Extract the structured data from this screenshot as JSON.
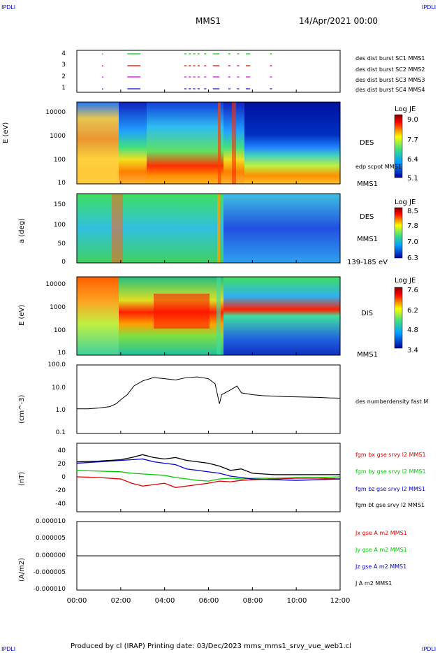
{
  "corner_labels": {
    "tl": "IPDLI",
    "tr": "IPDLI",
    "bl": "IPDLI",
    "br": "IPDLI"
  },
  "header": {
    "spacecraft": "MMS1",
    "date": "14/Apr/2021 00:00"
  },
  "footer": "Produced by cl (IRAP)   Printing date: 03/Dec/2023   mms_mms1_srvy_vue_web1.cl",
  "colors": {
    "red": "#dd0000",
    "magenta": "#dd00dd",
    "blue": "#0000cc",
    "green": "#00cc00",
    "black": "#000000"
  },
  "chart_data": [
    {
      "type": "scatter",
      "name": "burst indicators",
      "y_ticks": [
        "4",
        "3",
        "2",
        "1"
      ],
      "legend": [
        {
          "text": "des dist burst SC1 MMS1",
          "color": "#0000cc"
        },
        {
          "text": "des dist burst SC2 MMS2",
          "color": "#dd00dd"
        },
        {
          "text": "des dist burst SC3 MMS3",
          "color": "#dd0000"
        },
        {
          "text": "des dist burst SC4 MMS4",
          "color": "#00cc00"
        }
      ]
    },
    {
      "type": "heatmap",
      "ylabel": "E (eV)",
      "y_ticks": [
        "10000",
        "1000",
        "100",
        "10"
      ],
      "right_labels": [
        "DES",
        "edp scpot MMS1",
        "MMS1"
      ],
      "colorbar": {
        "title": "Log JE",
        "ticks": [
          "9.0",
          "7.7",
          "6.4",
          "5.1"
        ]
      }
    },
    {
      "type": "heatmap",
      "ylabel": "a (deg)",
      "y_ticks": [
        "150",
        "100",
        "50",
        "0"
      ],
      "right_labels": [
        "DES",
        "MMS1",
        "139-185 eV"
      ],
      "colorbar": {
        "title": "Log JE",
        "ticks": [
          "8.5",
          "7.8",
          "7.0",
          "6.3"
        ]
      }
    },
    {
      "type": "heatmap",
      "ylabel": "E (eV)",
      "y_ticks": [
        "10000",
        "1000",
        "100",
        "10"
      ],
      "right_labels": [
        "DIS",
        "MMS1"
      ],
      "colorbar": {
        "title": "Log JE",
        "ticks": [
          "7.6",
          "6.2",
          "4.8",
          "3.4"
        ]
      }
    },
    {
      "type": "line",
      "ylabel": "(cm^-3)",
      "y_ticks": [
        "100.0",
        "10.0",
        "1.0",
        "0.1"
      ],
      "ylim": [
        0.1,
        100
      ],
      "series": [
        {
          "name": "des numberdensity fast M",
          "color": "#000000",
          "x": [
            0,
            0.5,
            1.0,
            1.5,
            1.8,
            2.0,
            2.3,
            2.6,
            3.0,
            3.5,
            4.0,
            4.5,
            5.0,
            5.5,
            6.0,
            6.3,
            6.5,
            6.6,
            7.0,
            7.3,
            7.5,
            8.0,
            8.5,
            9.0,
            9.5,
            10.0,
            10.5,
            11.0,
            11.5,
            12.0
          ],
          "values": [
            1.2,
            1.2,
            1.3,
            1.5,
            2.0,
            3.0,
            5.0,
            12,
            20,
            28,
            25,
            22,
            28,
            30,
            25,
            15,
            2.0,
            5.0,
            8,
            12,
            6,
            5,
            4.5,
            4.3,
            4.1,
            4.0,
            3.9,
            3.8,
            3.6,
            3.5
          ]
        }
      ]
    },
    {
      "type": "line",
      "ylabel": "(nT)",
      "y_ticks": [
        "40",
        "20",
        "0",
        "-20",
        "-40"
      ],
      "ylim": [
        -48,
        48
      ],
      "series": [
        {
          "name": "fgm bx gse srvy l2 MMS1",
          "color": "#dd0000",
          "x": [
            0,
            1,
            2,
            2.5,
            3,
            3.5,
            4,
            4.5,
            5,
            5.5,
            6,
            6.5,
            7,
            7.5,
            8,
            9,
            10,
            11,
            12
          ],
          "values": [
            1,
            0,
            -2,
            -8,
            -12,
            -10,
            -8,
            -14,
            -12,
            -10,
            -8,
            -5,
            -6,
            -4,
            -3,
            -2,
            -1,
            -1,
            -2
          ]
        },
        {
          "name": "fgm by gse srvy l2 MMS1",
          "color": "#00cc00",
          "x": [
            0,
            1,
            2,
            2.5,
            3,
            3.5,
            4,
            4.5,
            5,
            5.5,
            6,
            6.5,
            7,
            7.5,
            8,
            9,
            10,
            11,
            12
          ],
          "values": [
            10,
            9,
            8,
            6,
            5,
            4,
            3,
            0,
            -2,
            -4,
            -5,
            -2,
            -1,
            -2,
            -1,
            -1,
            0,
            0,
            1
          ]
        },
        {
          "name": "fgm bz gse srvy l2 MMS1",
          "color": "#0000cc",
          "x": [
            0,
            1,
            2,
            2.5,
            3,
            3.5,
            4,
            4.5,
            5,
            5.5,
            6,
            6.5,
            7,
            7.5,
            8,
            9,
            10,
            11,
            12
          ],
          "values": [
            20,
            22,
            24,
            25,
            26,
            22,
            20,
            18,
            12,
            10,
            8,
            6,
            2,
            0,
            -2,
            -3,
            -4,
            -3,
            -2
          ]
        },
        {
          "name": "fgm bt gse srvy l2 MMS1",
          "color": "#000000",
          "x": [
            0,
            1,
            2,
            2.5,
            3,
            3.5,
            4,
            4.5,
            5,
            5.5,
            6,
            6.5,
            7,
            7.5,
            8,
            9,
            10,
            11,
            12
          ],
          "values": [
            22,
            23,
            25,
            28,
            32,
            28,
            26,
            28,
            24,
            22,
            20,
            16,
            10,
            12,
            6,
            4,
            4,
            4,
            4
          ]
        }
      ]
    },
    {
      "type": "line",
      "ylabel": "(A/m2)",
      "y_ticks": [
        "0.000010",
        "0.000005",
        "0.000000",
        "-0.000005",
        "-0.000010"
      ],
      "ylim": [
        -1e-05,
        1e-05
      ],
      "series": [
        {
          "name": "Jx gse A m2 MMS1",
          "color": "#dd0000",
          "x": [
            0,
            12
          ],
          "values": [
            0,
            0
          ]
        },
        {
          "name": "Jy gse A m2 MMS1",
          "color": "#00cc00",
          "x": [
            0,
            12
          ],
          "values": [
            0,
            0
          ]
        },
        {
          "name": "Jz gse A m2 MMS1",
          "color": "#0000cc",
          "x": [
            0,
            12
          ],
          "values": [
            0,
            0
          ]
        },
        {
          "name": "J A m2 MMS1",
          "color": "#000000",
          "x": [
            0,
            12
          ],
          "values": [
            0,
            0
          ]
        }
      ]
    }
  ],
  "x_axis": {
    "ticks": [
      "00:00",
      "02:00",
      "04:00",
      "06:00",
      "08:00",
      "10:00",
      "12:00"
    ],
    "xlim": [
      0,
      12
    ]
  }
}
